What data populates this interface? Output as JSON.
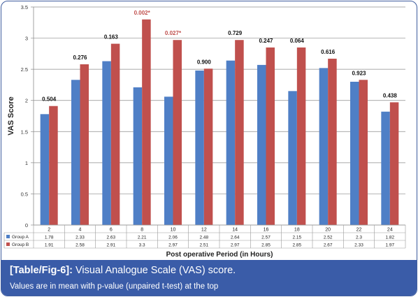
{
  "chart_data": {
    "type": "bar",
    "title": "",
    "xlabel": "Post operative Period (in Hours)",
    "ylabel": "VAS Score",
    "ylim": [
      0,
      3.5
    ],
    "ytick_step": 0.5,
    "yticks": [
      "0",
      "0.5",
      "1",
      "1.5",
      "2",
      "2.5",
      "3",
      "3.5"
    ],
    "grid": true,
    "categories": [
      "2",
      "4",
      "6",
      "8",
      "10",
      "12",
      "14",
      "16",
      "18",
      "20",
      "22",
      "24"
    ],
    "series": [
      {
        "name": "Group A",
        "color": "#4f7fc6",
        "values": [
          1.78,
          2.33,
          2.63,
          2.21,
          2.06,
          2.48,
          2.64,
          2.57,
          2.15,
          2.52,
          2.3,
          1.82
        ],
        "labels": [
          "1.78",
          "2.33",
          "2.63",
          "2.21",
          "2.06",
          "2.48",
          "2.64",
          "2.57",
          "2.15",
          "2.52",
          "2.3",
          "1.82"
        ]
      },
      {
        "name": "Group B",
        "color": "#c0504d",
        "values": [
          1.91,
          2.58,
          2.91,
          3.3,
          2.97,
          2.51,
          2.97,
          2.85,
          2.85,
          2.67,
          2.33,
          1.97
        ],
        "labels": [
          "1.91",
          "2.58",
          "2.91",
          "3.3",
          "2.97",
          "2.51",
          "2.97",
          "2.85",
          "2.85",
          "2.67",
          "2.33",
          "1.97"
        ]
      }
    ],
    "annotations": [
      {
        "text": "0.504",
        "significant": false
      },
      {
        "text": "0.276",
        "significant": false
      },
      {
        "text": "0.163",
        "significant": false
      },
      {
        "text": "0.002*",
        "significant": true
      },
      {
        "text": "0.027*",
        "significant": true
      },
      {
        "text": "0.900",
        "significant": false
      },
      {
        "text": "0.729",
        "significant": false
      },
      {
        "text": "0.247",
        "significant": false
      },
      {
        "text": "0.064",
        "significant": false
      },
      {
        "text": "0.616",
        "significant": false
      },
      {
        "text": "0.923",
        "significant": false
      },
      {
        "text": "0.438",
        "significant": false
      }
    ],
    "annotation_color": "#c0504d",
    "legend_placement": "data-table"
  },
  "caption": {
    "tag": "[Table/Fig-6]:",
    "title": " Visual Analogue Scale (VAS) score.",
    "subtitle": "Values are in mean with p-value (unpaired t-test) at the top"
  },
  "colors": {
    "caption_bg": "#3a5ca8",
    "frame": "#3f5d9e"
  }
}
